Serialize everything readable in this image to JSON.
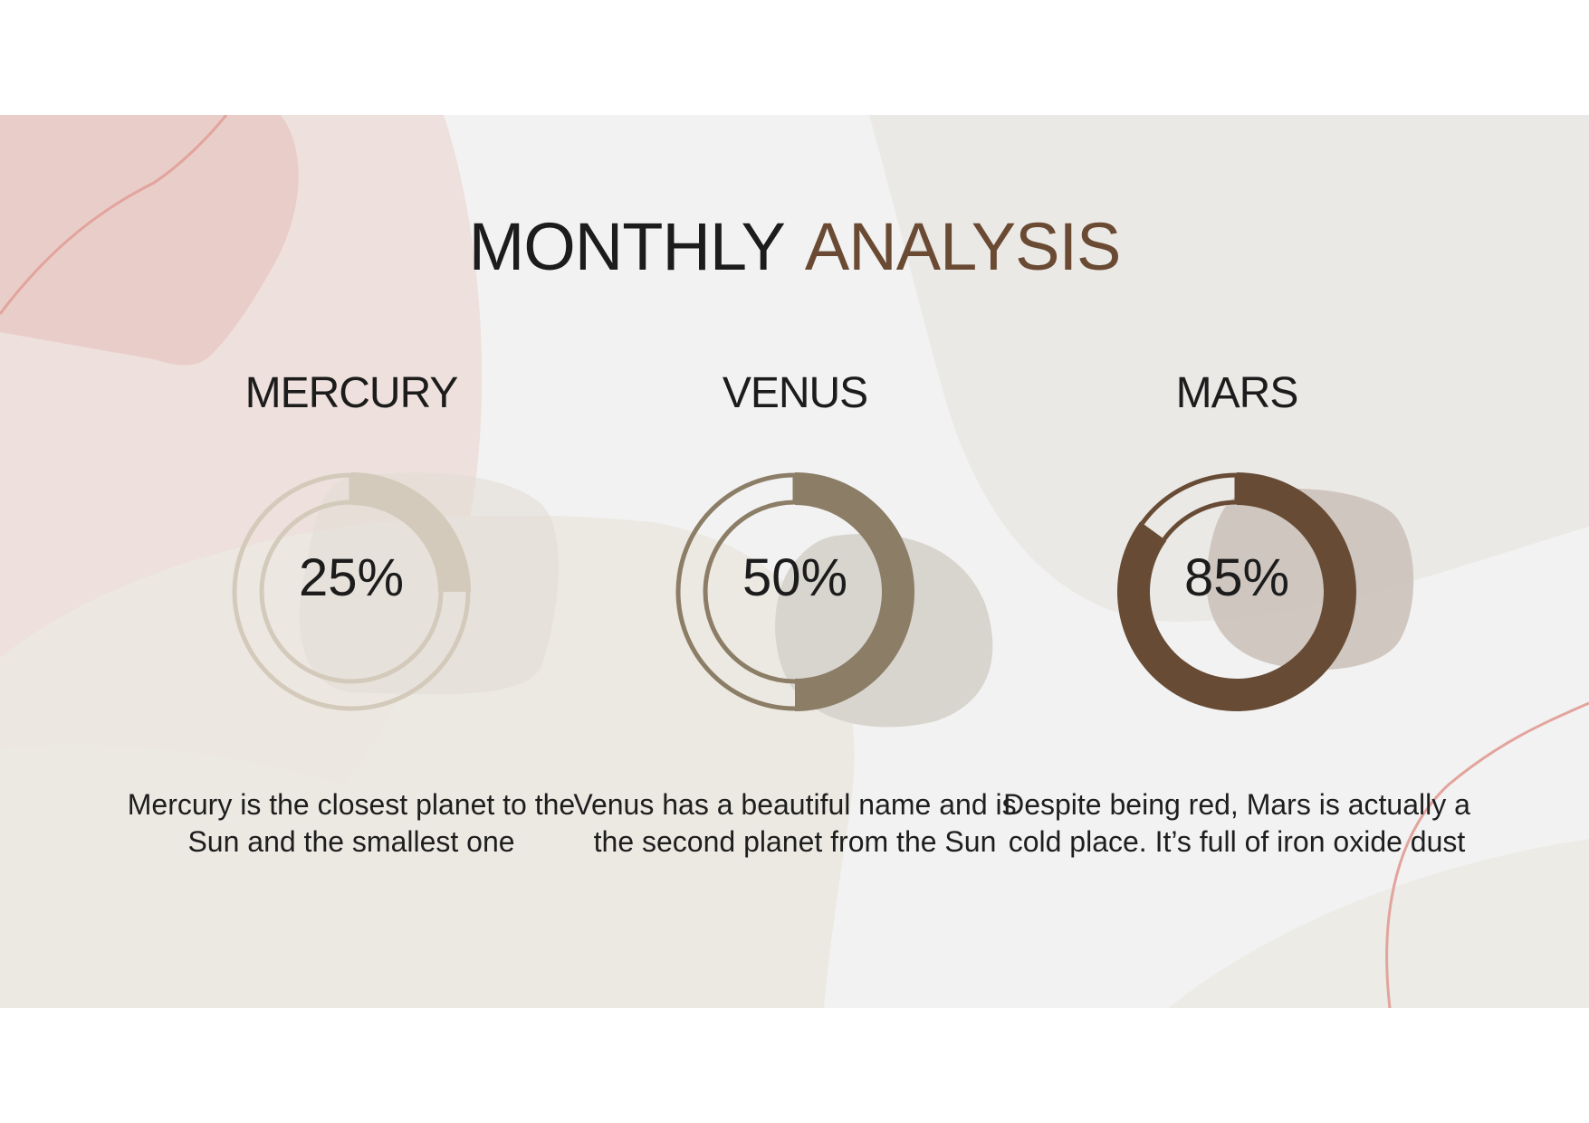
{
  "title": {
    "part1": "MONTHLY",
    "part2": "ANALYSIS"
  },
  "colors": {
    "mercury": "#d4cabb",
    "venus": "#8b7d66",
    "mars": "#674b35",
    "accent": "#6a4a33",
    "line": "#e2a49c"
  },
  "chart_data": {
    "type": "pie",
    "style": "donut",
    "title": "MONTHLY ANALYSIS",
    "categories": [
      "MERCURY",
      "VENUS",
      "MARS"
    ],
    "values": [
      25,
      50,
      85
    ],
    "labels": [
      "25%",
      "50%",
      "85%"
    ],
    "unit": "%"
  },
  "planets": [
    {
      "name": "MERCURY",
      "percent": 25,
      "percent_label": "25%",
      "description": "Mercury is  the closest planet to the Sun and the smallest one",
      "color": "#d4cabb"
    },
    {
      "name": "VENUS",
      "percent": 50,
      "percent_label": "50%",
      "description": "Venus has a beautiful name and is the second planet from the Sun",
      "color": "#8b7d66"
    },
    {
      "name": "MARS",
      "percent": 85,
      "percent_label": "85%",
      "description": "Despite being red, Mars is actually a cold place. It’s full of iron oxide dust",
      "color": "#674b35"
    }
  ]
}
